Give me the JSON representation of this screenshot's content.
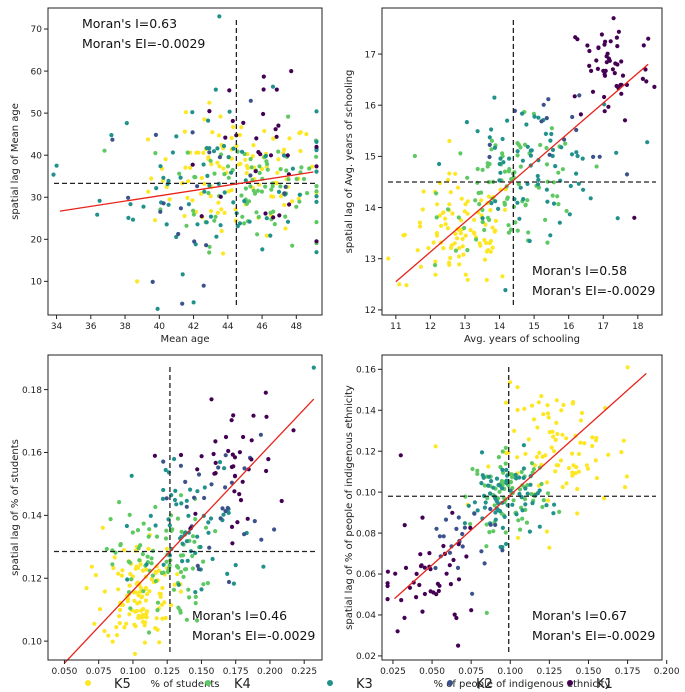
{
  "legend": {
    "items": [
      {
        "key": "K5",
        "label": "K5",
        "color": "#fde725"
      },
      {
        "key": "K4",
        "label": "K4",
        "color": "#5ec962"
      },
      {
        "key": "K3",
        "label": "K3",
        "color": "#21918c"
      },
      {
        "key": "K2",
        "label": "K2",
        "color": "#3b528b"
      },
      {
        "key": "K1",
        "label": "K1",
        "color": "#440154"
      }
    ]
  },
  "chart_data": [
    {
      "id": "mean-age",
      "type": "scatter",
      "xlabel": "Mean age",
      "ylabel": "spatial lag of Mean age",
      "xlim": [
        33.5,
        49.5
      ],
      "ylim": [
        2,
        75
      ],
      "xticks": [
        34,
        36,
        38,
        40,
        42,
        44,
        46,
        48
      ],
      "yticks": [
        10,
        20,
        30,
        40,
        50,
        60,
        70
      ],
      "moran_i": "Moran's I=0.63",
      "moran_ei": "Moran's EI=-0.0029",
      "mean_x": 44.5,
      "mean_y": 33.3,
      "fit": {
        "x0": 34.2,
        "y0": 26.7,
        "x1": 49.0,
        "y1": 36.0
      },
      "clusters": {
        "K5": {
          "cx": 44.5,
          "cy": 35,
          "sx": 2.5,
          "sy": 7
        },
        "K4": {
          "cx": 45.5,
          "cy": 33,
          "sx": 2.5,
          "sy": 7
        },
        "K3": {
          "cx": 43.5,
          "cy": 33,
          "sx": 3.5,
          "sy": 10
        },
        "K2": {
          "cx": 42.5,
          "cy": 31,
          "sx": 3.0,
          "sy": 10
        },
        "K1": {
          "cx": 45.5,
          "cy": 40,
          "sx": 2.2,
          "sy": 8
        }
      },
      "counts": {
        "K5": 110,
        "K4": 90,
        "K3": 75,
        "K2": 20,
        "K1": 30
      },
      "sample_points": [
        {
          "x": 43.5,
          "y": 73,
          "c": "K3"
        },
        {
          "x": 47.7,
          "y": 60,
          "c": "K1"
        },
        {
          "x": 34.0,
          "y": 37.5,
          "c": "K3"
        },
        {
          "x": 38.7,
          "y": 10,
          "c": "K5"
        },
        {
          "x": 42.0,
          "y": 5,
          "c": "K3"
        }
      ],
      "moran_pos": "top-left"
    },
    {
      "id": "schooling",
      "type": "scatter",
      "xlabel": "Avg. years of schooling",
      "ylabel": "spatial lag of Avg. years of schooling",
      "xlim": [
        10.6,
        18.7
      ],
      "ylim": [
        11.9,
        17.9
      ],
      "xticks": [
        11,
        12,
        13,
        14,
        15,
        16,
        17,
        18
      ],
      "yticks": [
        12,
        13,
        14,
        15,
        16,
        17
      ],
      "moran_i": "Moran's I=0.58",
      "moran_ei": "Moran's EI=-0.0029",
      "mean_x": 14.4,
      "mean_y": 14.5,
      "fit": {
        "x0": 11.0,
        "y0": 12.55,
        "x1": 18.3,
        "y1": 16.8
      },
      "clusters": {
        "K5": {
          "cx": 12.9,
          "cy": 13.5,
          "sx": 0.8,
          "sy": 0.55
        },
        "K4": {
          "cx": 14.4,
          "cy": 14.4,
          "sx": 1.0,
          "sy": 0.6
        },
        "K3": {
          "cx": 14.8,
          "cy": 14.8,
          "sx": 1.1,
          "sy": 0.6
        },
        "K2": {
          "cx": 15.8,
          "cy": 15.2,
          "sx": 1.0,
          "sy": 0.6
        },
        "K1": {
          "cx": 17.2,
          "cy": 16.7,
          "sx": 0.6,
          "sy": 0.55
        }
      },
      "counts": {
        "K5": 100,
        "K4": 90,
        "K3": 70,
        "K2": 15,
        "K1": 50
      },
      "sample_points": [
        {
          "x": 18.3,
          "y": 17.3,
          "c": "K1"
        },
        {
          "x": 17.9,
          "y": 13.8,
          "c": "K1"
        },
        {
          "x": 11.1,
          "y": 12.5,
          "c": "K5"
        },
        {
          "x": 17.3,
          "y": 17.7,
          "c": "K1"
        }
      ],
      "moran_pos": "bottom-right"
    },
    {
      "id": "students",
      "type": "scatter",
      "xlabel": "% of students",
      "ylabel": "spatial lag of % of students",
      "xlim": [
        0.038,
        0.238
      ],
      "ylim": [
        0.094,
        0.191
      ],
      "xticks": [
        0.05,
        0.075,
        0.1,
        0.125,
        0.15,
        0.175,
        0.2,
        0.225
      ],
      "xtick_labels": [
        "0.050",
        "0.075",
        "0.100",
        "0.125",
        "0.150",
        "0.175",
        "0.200",
        "0.225"
      ],
      "yticks": [
        0.1,
        0.12,
        0.14,
        0.16,
        0.18
      ],
      "ytick_labels": [
        "0.10",
        "0.12",
        "0.14",
        "0.16",
        "0.18"
      ],
      "moran_i": "Moran's I=0.46",
      "moran_ei": "Moran's EI=-0.0029",
      "mean_x": 0.127,
      "mean_y": 0.1285,
      "fit": {
        "x0": 0.05,
        "y0": 0.093,
        "x1": 0.232,
        "y1": 0.177
      },
      "clusters": {
        "K5": {
          "cx": 0.104,
          "cy": 0.115,
          "sx": 0.013,
          "sy": 0.008
        },
        "K4": {
          "cx": 0.12,
          "cy": 0.125,
          "sx": 0.018,
          "sy": 0.01
        },
        "K3": {
          "cx": 0.145,
          "cy": 0.135,
          "sx": 0.022,
          "sy": 0.012
        },
        "K2": {
          "cx": 0.16,
          "cy": 0.145,
          "sx": 0.02,
          "sy": 0.01
        },
        "K1": {
          "cx": 0.17,
          "cy": 0.155,
          "sx": 0.018,
          "sy": 0.01
        }
      },
      "counts": {
        "K5": 120,
        "K4": 90,
        "K3": 60,
        "K2": 30,
        "K1": 40
      },
      "sample_points": [
        {
          "x": 0.232,
          "y": 0.187,
          "c": "K3"
        },
        {
          "x": 0.197,
          "y": 0.179,
          "c": "K1"
        },
        {
          "x": 0.073,
          "y": 0.121,
          "c": "K5"
        },
        {
          "x": 0.078,
          "y": 0.136,
          "c": "K5"
        }
      ],
      "moran_pos": "bottom-right"
    },
    {
      "id": "indigenous",
      "type": "scatter",
      "xlabel": "% of people of indigenous ethnicity",
      "ylabel": "spatial lag of % of people of indigenous ethnicity",
      "xlim": [
        0.018,
        0.197
      ],
      "ylim": [
        0.018,
        0.167
      ],
      "xticks": [
        0.025,
        0.05,
        0.075,
        0.1,
        0.125,
        0.15,
        0.175,
        0.2
      ],
      "xtick_labels": [
        "0.025",
        "0.050",
        "0.075",
        "0.100",
        "0.125",
        "0.150",
        "0.175",
        "0.200"
      ],
      "yticks": [
        0.02,
        0.04,
        0.06,
        0.08,
        0.1,
        0.12,
        0.14,
        0.16
      ],
      "ytick_labels": [
        "0.02",
        "0.04",
        "0.06",
        "0.08",
        "0.10",
        "0.12",
        "0.14",
        "0.16"
      ],
      "moran_i": "Moran's I=0.67",
      "moran_ei": "Moran's EI=-0.0029",
      "mean_x": 0.099,
      "mean_y": 0.098,
      "fit": {
        "x0": 0.026,
        "y0": 0.048,
        "x1": 0.187,
        "y1": 0.158
      },
      "clusters": {
        "K5": {
          "cx": 0.135,
          "cy": 0.12,
          "sx": 0.022,
          "sy": 0.015
        },
        "K4": {
          "cx": 0.1,
          "cy": 0.1,
          "sx": 0.012,
          "sy": 0.009
        },
        "K3": {
          "cx": 0.095,
          "cy": 0.097,
          "sx": 0.012,
          "sy": 0.01
        },
        "K2": {
          "cx": 0.07,
          "cy": 0.08,
          "sx": 0.015,
          "sy": 0.012
        },
        "K1": {
          "cx": 0.05,
          "cy": 0.055,
          "sx": 0.015,
          "sy": 0.012
        }
      },
      "counts": {
        "K5": 90,
        "K4": 80,
        "K3": 70,
        "K2": 25,
        "K1": 45
      },
      "sample_points": [
        {
          "x": 0.03,
          "y": 0.118,
          "c": "K1"
        },
        {
          "x": 0.175,
          "y": 0.161,
          "c": "K5"
        },
        {
          "x": 0.028,
          "y": 0.032,
          "c": "K1"
        },
        {
          "x": 0.085,
          "y": 0.041,
          "c": "K4"
        }
      ],
      "moran_pos": "bottom-right"
    }
  ]
}
